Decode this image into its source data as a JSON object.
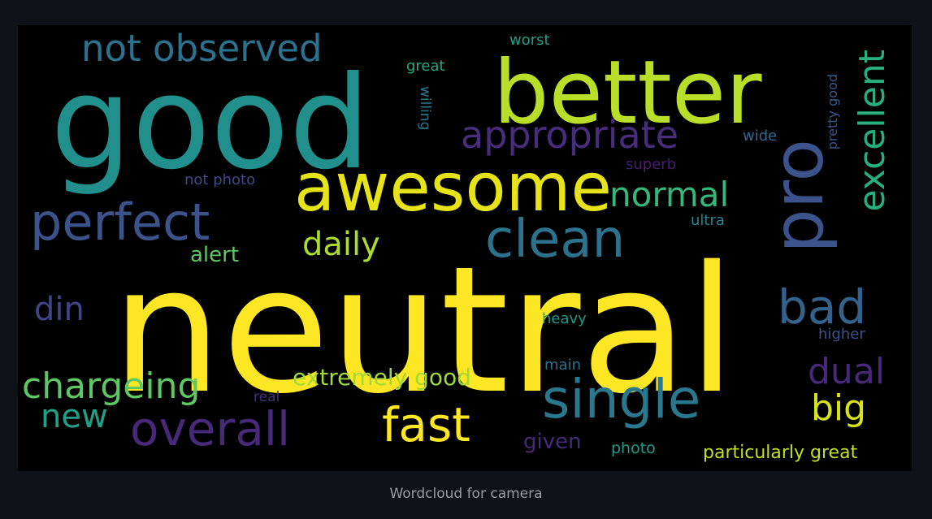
{
  "wordcloud": {
    "background": "#000000",
    "words": [
      {
        "text": "good",
        "color": "#21908d"
      },
      {
        "text": "better",
        "color": "#b8de29"
      },
      {
        "text": "neutral",
        "color": "#fde725"
      },
      {
        "text": "not observed",
        "color": "#2c728e"
      },
      {
        "text": "awesome",
        "color": "#e6e419"
      },
      {
        "text": "appropriate",
        "color": "#472d7b"
      },
      {
        "text": "pro",
        "color": "#3b528b"
      },
      {
        "text": "excellent",
        "color": "#29af7f"
      },
      {
        "text": "perfect",
        "color": "#3b528b"
      },
      {
        "text": "normal",
        "color": "#35b779"
      },
      {
        "text": "clean",
        "color": "#2c728e"
      },
      {
        "text": "daily",
        "color": "#addc30"
      },
      {
        "text": "alert",
        "color": "#5ec962"
      },
      {
        "text": "din",
        "color": "#414487"
      },
      {
        "text": "bad",
        "color": "#33638d"
      },
      {
        "text": "chargeing",
        "color": "#5ec962"
      },
      {
        "text": "extremely good",
        "color": "#a0da39"
      },
      {
        "text": "single",
        "color": "#2a788e"
      },
      {
        "text": "dual",
        "color": "#482878"
      },
      {
        "text": "big",
        "color": "#d8e219"
      },
      {
        "text": "new",
        "color": "#1fa187"
      },
      {
        "text": "overall",
        "color": "#482878"
      },
      {
        "text": "fast",
        "color": "#fde725"
      },
      {
        "text": "worst",
        "color": "#1f9e89"
      },
      {
        "text": "great",
        "color": "#22a884"
      },
      {
        "text": "willing",
        "color": "#2a788e"
      },
      {
        "text": "wide",
        "color": "#31688e"
      },
      {
        "text": "superb",
        "color": "#481c6e"
      },
      {
        "text": "pretty good",
        "color": "#38598c"
      },
      {
        "text": "not photo",
        "color": "#3e4a89"
      },
      {
        "text": "ultra",
        "color": "#25848e"
      },
      {
        "text": "heavy",
        "color": "#1f9a8a"
      },
      {
        "text": "higher",
        "color": "#3b528b"
      },
      {
        "text": "main",
        "color": "#2c728e"
      },
      {
        "text": "real",
        "color": "#46337e"
      },
      {
        "text": "given",
        "color": "#482878"
      },
      {
        "text": "photo",
        "color": "#1e9c89"
      },
      {
        "text": "particularly great",
        "color": "#c2df23"
      }
    ]
  },
  "caption": "Wordcloud for camera"
}
